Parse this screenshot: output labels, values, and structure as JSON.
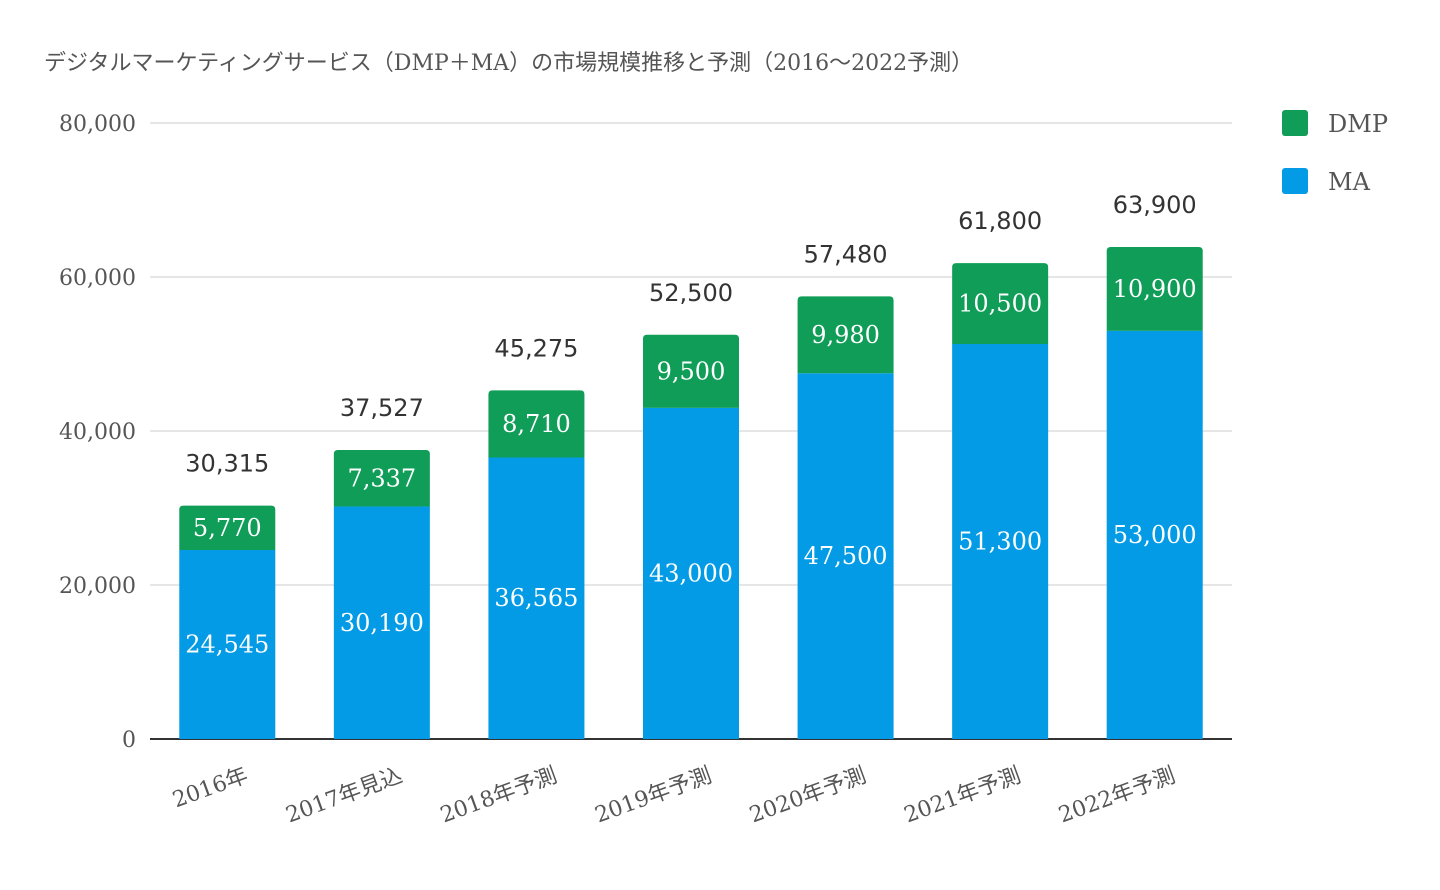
{
  "chart_data": {
    "type": "bar",
    "stacked": true,
    "title": "デジタルマーケティングサービス（DMP＋MA）の市場規模推移と予測（2016～2022予測）",
    "categories": [
      "2016年",
      "2017年見込",
      "2018年予測",
      "2019年予測",
      "2020年予測",
      "2021年予測",
      "2022年予測"
    ],
    "series": [
      {
        "name": "MA",
        "color": "#039be5",
        "values": [
          24545,
          30190,
          36565,
          43000,
          47500,
          51300,
          53000
        ]
      },
      {
        "name": "DMP",
        "color": "#0f9d58",
        "values": [
          5770,
          7337,
          8710,
          9500,
          9980,
          10500,
          10900
        ]
      }
    ],
    "totals": [
      30315,
      37527,
      45275,
      52500,
      57480,
      61800,
      63900
    ],
    "ylim": [
      0,
      80000
    ],
    "yticks": [
      0,
      20000,
      40000,
      60000,
      80000
    ],
    "grid": true,
    "legend": "right-top",
    "xlabel": "",
    "ylabel": ""
  }
}
